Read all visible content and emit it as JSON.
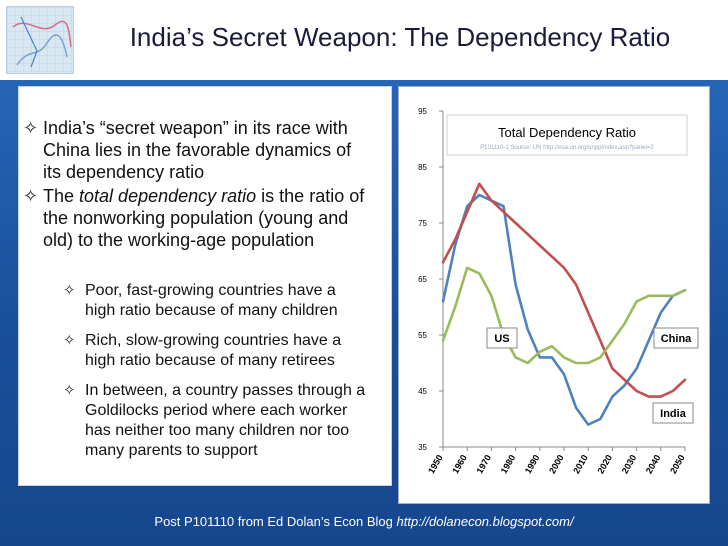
{
  "slide": {
    "title": "India’s Secret Weapon: The Dependency Ratio",
    "footer_prefix": "Post P101110 from Ed Dolan’s Econ Blog",
    "footer_url": "http://dolanecon.blogspot.com/"
  },
  "bullets": [
    {
      "icon": "diamond-star-bullet-icon",
      "lines": [
        "India’s “secret weapon” in its race with",
        "China lies in the favorable dynamics of",
        "its dependency ratio"
      ]
    },
    {
      "icon": "diamond-star-bullet-icon",
      "line1_prefix": "The ",
      "line1_italic": "total dependency ratio",
      "line1_suffix": " is the ratio of",
      "lines_rest": [
        "the nonworking population (young and",
        "old) to the working-age population"
      ]
    }
  ],
  "sub_bullets": [
    {
      "icon": "diamond-star-bullet-icon",
      "lines": [
        "Poor, fast-growing countries have a",
        "high ratio because of many children"
      ]
    },
    {
      "icon": "diamond-star-bullet-icon",
      "lines": [
        "Rich, slow-growing countries have a",
        "high ratio because of many retirees"
      ]
    },
    {
      "icon": "diamond-star-bullet-icon",
      "lines": [
        "In between, a country passes through a",
        "Goldilocks period where each worker",
        "has neither too many children nor too",
        "many parents to support"
      ]
    }
  ],
  "colors": {
    "us": "#4f81bd",
    "china": "#c0504d",
    "india": "#9bbb59"
  },
  "chart_data": {
    "type": "line",
    "title": "Total Dependency Ratio",
    "subtitle": "P101110-1 Source: UN http://esa.un.org/unpp/index.asp?panel=2",
    "ylim": [
      35,
      95
    ],
    "yticks": [
      35,
      45,
      55,
      65,
      75,
      85,
      95
    ],
    "x": [
      1950,
      1955,
      1960,
      1965,
      1970,
      1975,
      1980,
      1985,
      1990,
      1995,
      2000,
      2005,
      2010,
      2015,
      2020,
      2025,
      2030,
      2035,
      2040,
      2045,
      2050
    ],
    "xticks": [
      1950,
      1960,
      1970,
      1980,
      1990,
      2000,
      2010,
      2020,
      2030,
      2040,
      2050
    ],
    "series": [
      {
        "name": "US",
        "color": "#4f81bd",
        "values": [
          61,
          71,
          78,
          80,
          79,
          78,
          64,
          56,
          51,
          51,
          48,
          42,
          39,
          40,
          44,
          46,
          49,
          54,
          59,
          62,
          63
        ]
      },
      {
        "name": "China",
        "color": "#c0504d",
        "values": [
          68,
          72,
          77,
          82,
          79,
          77,
          75,
          73,
          71,
          69,
          67,
          64,
          59,
          54,
          49,
          47,
          45,
          44,
          44,
          45,
          47
        ]
      },
      {
        "name": "India",
        "color": "#9bbb59",
        "values": [
          54,
          60,
          67,
          66,
          62,
          55,
          51,
          50,
          52,
          53,
          51,
          50,
          50,
          51,
          54,
          57,
          61,
          62,
          62,
          62,
          63
        ]
      }
    ],
    "labels": {
      "us": "US",
      "china": "China",
      "india": "India"
    },
    "grid": false
  }
}
